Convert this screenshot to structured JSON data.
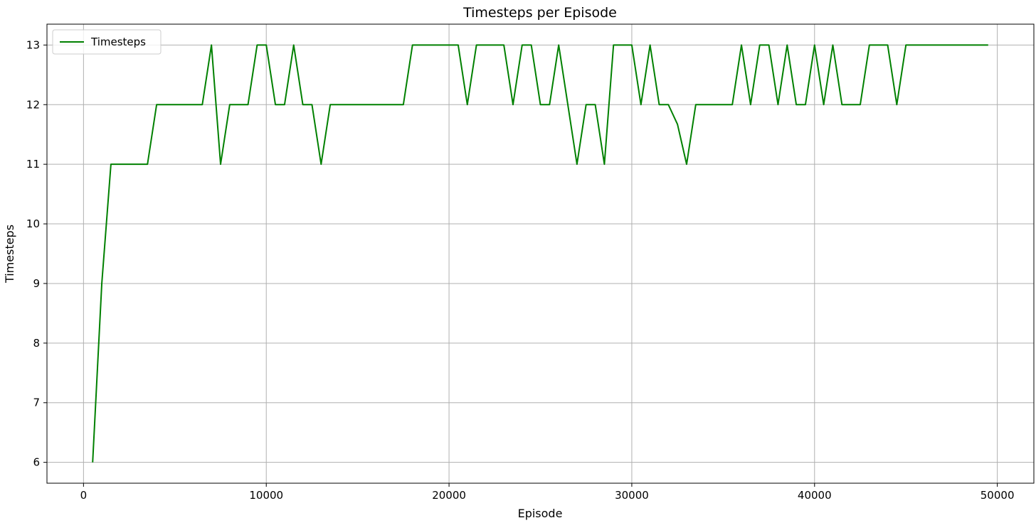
{
  "chart_data": {
    "type": "line",
    "title": "Timesteps per Episode",
    "xlabel": "Episode",
    "ylabel": "Timesteps",
    "xlim": [
      -2000,
      52000
    ],
    "ylim": [
      5.65,
      13.35
    ],
    "xticks": [
      0,
      10000,
      20000,
      30000,
      40000,
      50000
    ],
    "yticks": [
      6,
      7,
      8,
      9,
      10,
      11,
      12,
      13
    ],
    "grid": true,
    "legend_position": "top-left",
    "series": [
      {
        "name": "Timesteps",
        "color": "#008000",
        "x": [
          500,
          1000,
          1500,
          2000,
          2500,
          3000,
          3500,
          4000,
          4500,
          5000,
          5500,
          6000,
          6500,
          7000,
          7500,
          8000,
          8500,
          9000,
          9500,
          10000,
          10500,
          11000,
          11500,
          12000,
          12500,
          13000,
          13500,
          14000,
          14500,
          15000,
          15500,
          16000,
          16500,
          17000,
          17500,
          18000,
          18500,
          19000,
          19500,
          20000,
          20500,
          21000,
          21500,
          22000,
          22500,
          23000,
          23500,
          24000,
          24500,
          25000,
          25500,
          26000,
          26500,
          27000,
          27500,
          28000,
          28500,
          29000,
          29500,
          30000,
          30500,
          31000,
          31500,
          32000,
          32500,
          33000,
          33500,
          34000,
          34500,
          35000,
          35500,
          36000,
          36500,
          37000,
          37500,
          38000,
          38500,
          39000,
          39500,
          40000,
          40500,
          41000,
          41500,
          42000,
          42500,
          43000,
          43500,
          44000,
          44500,
          45000,
          45500,
          46000,
          46500,
          47000,
          47500,
          48000,
          48500,
          49000,
          49500
        ],
        "y": [
          6,
          9,
          11,
          11,
          11,
          11,
          11,
          12,
          12,
          12,
          12,
          12,
          12,
          13,
          11,
          12,
          12,
          12,
          13,
          13,
          12,
          12,
          13,
          12,
          12,
          11,
          12,
          12,
          12,
          12,
          12,
          12,
          12,
          12,
          12,
          13,
          13,
          13,
          13,
          13,
          13,
          12,
          13,
          13,
          13,
          13,
          12,
          13,
          13,
          12,
          12,
          13,
          12,
          11,
          12,
          12,
          11,
          13,
          13,
          13,
          12,
          13,
          12,
          12,
          11.67,
          11,
          12,
          12,
          12,
          12,
          12,
          13,
          12,
          13,
          13,
          12,
          13,
          12,
          12,
          13,
          12,
          13,
          12,
          12,
          12,
          13,
          13,
          13,
          12,
          13,
          13,
          13,
          13,
          13,
          13,
          13,
          13,
          13,
          13
        ]
      }
    ]
  }
}
